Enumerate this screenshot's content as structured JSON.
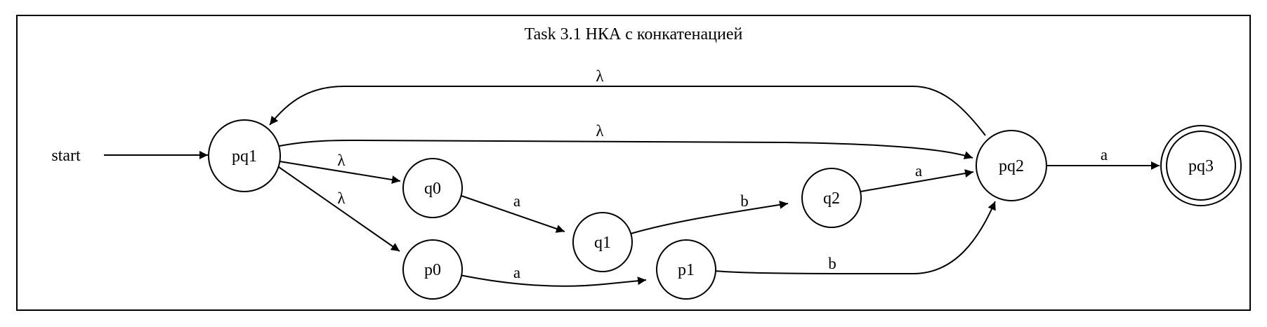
{
  "title": "Task 3.1 НКА с конкатенацией",
  "start_label": "start",
  "states": {
    "pq1": "pq1",
    "q0": "q0",
    "p0": "p0",
    "q1": "q1",
    "p1": "p1",
    "q2": "q2",
    "pq2": "pq2",
    "pq3": "pq3"
  },
  "accepting_states": [
    "pq3"
  ],
  "transitions": [
    {
      "from": "pq2",
      "to": "pq1",
      "label": "λ"
    },
    {
      "from": "pq1",
      "to": "pq2",
      "label": "λ"
    },
    {
      "from": "pq1",
      "to": "q0",
      "label": "λ"
    },
    {
      "from": "pq1",
      "to": "p0",
      "label": "λ"
    },
    {
      "from": "q0",
      "to": "q1",
      "label": "a"
    },
    {
      "from": "p0",
      "to": "p1",
      "label": "a"
    },
    {
      "from": "q1",
      "to": "q2",
      "label": "b"
    },
    {
      "from": "p1",
      "to": "pq2",
      "label": "b"
    },
    {
      "from": "q2",
      "to": "pq2",
      "label": "a"
    },
    {
      "from": "pq2",
      "to": "pq3",
      "label": "a"
    }
  ]
}
